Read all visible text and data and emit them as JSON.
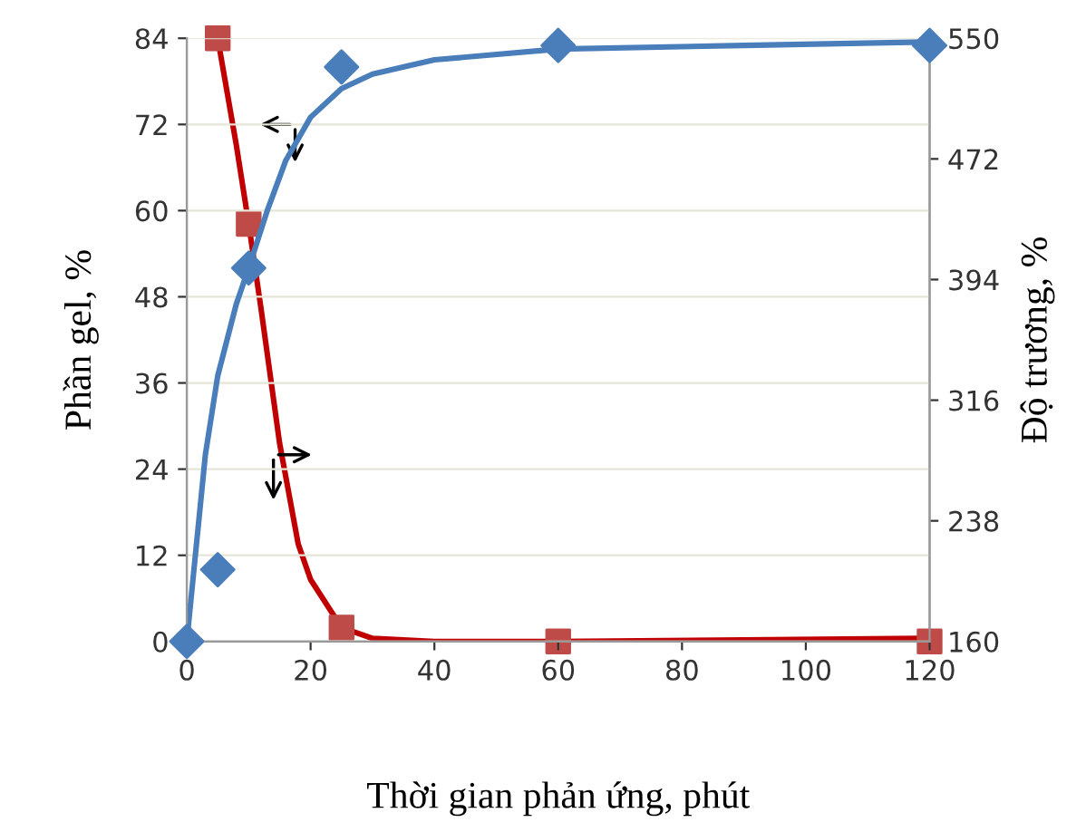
{
  "chart_data": {
    "type": "scatter",
    "xlabel": "Thời gian phản ứng, phút",
    "ylabel": "Phần gel, %",
    "y2label": "Độ trương, %",
    "xlim": [
      0,
      120
    ],
    "xticks": [
      0,
      20,
      40,
      60,
      80,
      100,
      120
    ],
    "ylim": [
      0,
      84
    ],
    "yticks": [
      0,
      12,
      24,
      36,
      48,
      60,
      72,
      84
    ],
    "y2lim": [
      160,
      550
    ],
    "y2ticks": [
      160,
      238,
      316,
      394,
      472,
      550
    ],
    "grid": "y",
    "series": [
      {
        "type": "line",
        "color": "#4a7ebb",
        "x": [
          0,
          1.5,
          3,
          5,
          8,
          10,
          13,
          16,
          20,
          25,
          30,
          40,
          60,
          90,
          120
        ],
        "values": [
          0,
          13,
          26,
          37,
          47,
          52,
          60,
          67,
          73,
          77,
          79,
          81,
          82.5,
          83,
          83.5
        ],
        "marker": "none"
      },
      {
        "type": "line",
        "axis": "y2",
        "color": "#c00000",
        "x": [
          5,
          8,
          10,
          12,
          15,
          18,
          20,
          25,
          30,
          40,
          60,
          90,
          120
        ],
        "values": [
          550,
          481,
          430,
          375,
          288,
          223,
          200,
          169,
          162,
          160,
          160,
          161,
          162
        ],
        "marker": "none"
      },
      {
        "color": "#4a7ebb",
        "x": [
          0,
          5,
          10,
          25,
          60,
          120
        ],
        "values": [
          0,
          10,
          52,
          80,
          83,
          83
        ],
        "marker": "diamond"
      },
      {
        "axis": "y2",
        "color": "#be4b48",
        "x": [
          5,
          10,
          25,
          60,
          120
        ],
        "values": [
          550,
          430,
          169,
          160,
          160
        ],
        "marker": "square"
      }
    ]
  }
}
